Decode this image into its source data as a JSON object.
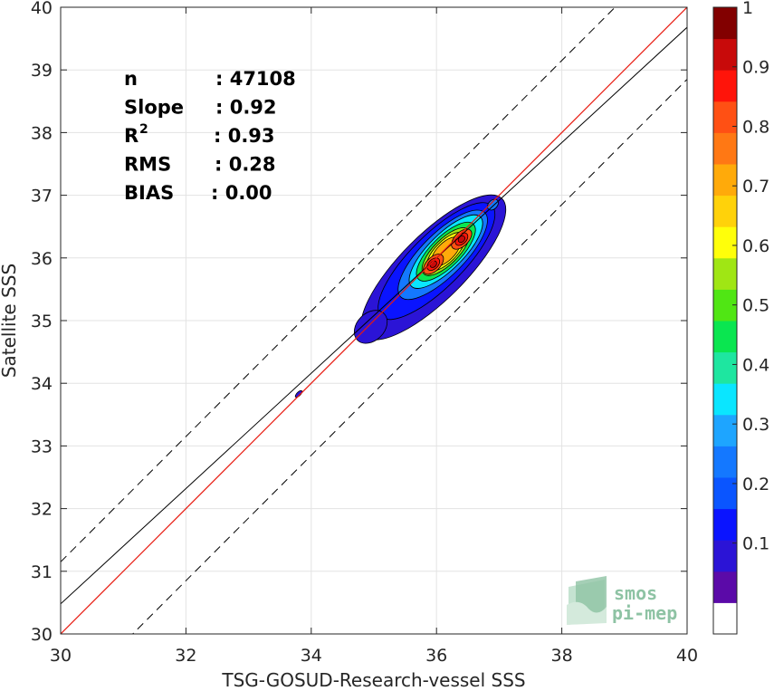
{
  "chart_data": {
    "type": "heatmap",
    "title": "",
    "xlabel": "TSG-GOSUD-Research-vessel SSS",
    "ylabel": "Satellite SSS",
    "xlim": [
      30,
      40
    ],
    "ylim": [
      30,
      40
    ],
    "xticks": [
      "30",
      "32",
      "34",
      "36",
      "38",
      "40"
    ],
    "yticks": [
      "30",
      "31",
      "32",
      "33",
      "34",
      "35",
      "36",
      "37",
      "38",
      "39",
      "40"
    ],
    "grid": true,
    "stats": [
      {
        "label": "n",
        "value": ": 47108"
      },
      {
        "label": "Slope",
        "value": ": 0.92"
      },
      {
        "label": "R",
        "sup": "2",
        "value": ": 0.93"
      },
      {
        "label": "RMS",
        "value": ": 0.28"
      },
      {
        "label": "BIAS",
        "value": ": 0.00"
      }
    ],
    "lines": {
      "identity": {
        "slope": 1,
        "intercept": 0,
        "color": "#e8190f"
      },
      "fit": {
        "slope": 0.92,
        "intercept": 2.88,
        "color": "#000000"
      },
      "bounds": {
        "offset": 0.9,
        "color": "#000000",
        "dash": true
      }
    },
    "density_peaks": [
      {
        "x": 35.95,
        "y": 35.9,
        "density": 1.0
      },
      {
        "x": 36.4,
        "y": 36.3,
        "density": 0.95
      }
    ],
    "colorbar": {
      "ticks": [
        "0.1",
        "0.2",
        "0.3",
        "0.4",
        "0.5",
        "0.6",
        "0.7",
        "0.8",
        "0.9",
        "1"
      ],
      "colors": [
        "#ffffff",
        "#5b0aa8",
        "#2b14d6",
        "#0a14ff",
        "#0a55ff",
        "#1478ff",
        "#1ea5ff",
        "#0ae6ff",
        "#1ee6a0",
        "#0ae650",
        "#50e614",
        "#a0e614",
        "#ffff0a",
        "#ffd20a",
        "#ffaa0a",
        "#ff7814",
        "#ff5014",
        "#ff140a",
        "#c80a0a",
        "#820000"
      ]
    },
    "logo": {
      "line1": "smos",
      "line2": "pi-mep"
    }
  }
}
